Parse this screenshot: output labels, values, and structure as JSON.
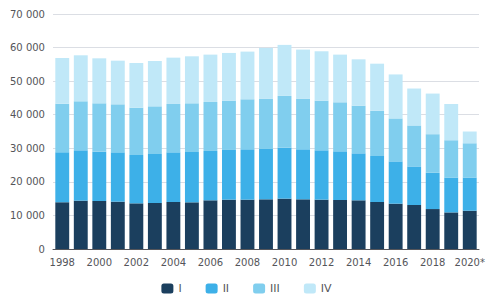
{
  "chart_data": {
    "type": "bar",
    "stacked": true,
    "grid": true,
    "legend": "bottom",
    "categories": [
      "1998",
      null,
      "2000",
      null,
      "2002",
      null,
      "2004",
      null,
      "2006",
      null,
      "2008",
      null,
      "2010",
      null,
      "2012",
      null,
      "2014",
      null,
      "2016",
      null,
      "2018",
      null,
      "2020*"
    ],
    "series": [
      {
        "name": "I",
        "color": "#1b3f5e",
        "values": [
          13900,
          14400,
          14300,
          14100,
          13600,
          13700,
          14000,
          13900,
          14500,
          14700,
          14700,
          14800,
          15000,
          14800,
          14700,
          14600,
          14500,
          14000,
          13500,
          13100,
          11900,
          10900,
          11400
        ]
      },
      {
        "name": "II",
        "color": "#3db0e8",
        "values": [
          14900,
          15000,
          14700,
          14700,
          14400,
          14600,
          14800,
          15000,
          14700,
          14800,
          15000,
          15000,
          15200,
          14900,
          14700,
          14500,
          14000,
          13700,
          12600,
          11500,
          10800,
          10400,
          9900
        ]
      },
      {
        "name": "III",
        "color": "#80ceee",
        "values": [
          14500,
          14600,
          14400,
          14300,
          14100,
          14200,
          14400,
          14500,
          14600,
          14700,
          14900,
          15000,
          15400,
          15000,
          14800,
          14600,
          14200,
          13500,
          12800,
          12200,
          11500,
          11100,
          10200
        ]
      },
      {
        "name": "IV",
        "color": "#c0e8f8",
        "values": [
          13600,
          13700,
          13400,
          13000,
          13300,
          13500,
          13800,
          14000,
          14100,
          14200,
          14200,
          15100,
          15200,
          14700,
          14700,
          14200,
          13800,
          14000,
          13100,
          11000,
          12100,
          10800,
          3500
        ]
      }
    ],
    "ylim": [
      0,
      70000
    ],
    "yticks": [
      0,
      {
        "value": 10000,
        "label": "10 000"
      },
      {
        "value": 20000,
        "label": "20 000"
      },
      {
        "value": 30000,
        "label": "30 000"
      },
      {
        "value": 40000,
        "label": "40 000"
      },
      {
        "value": 50000,
        "label": "50 000"
      },
      {
        "value": 60000,
        "label": "60 000"
      },
      {
        "value": 70000,
        "label": "70 000"
      }
    ]
  }
}
